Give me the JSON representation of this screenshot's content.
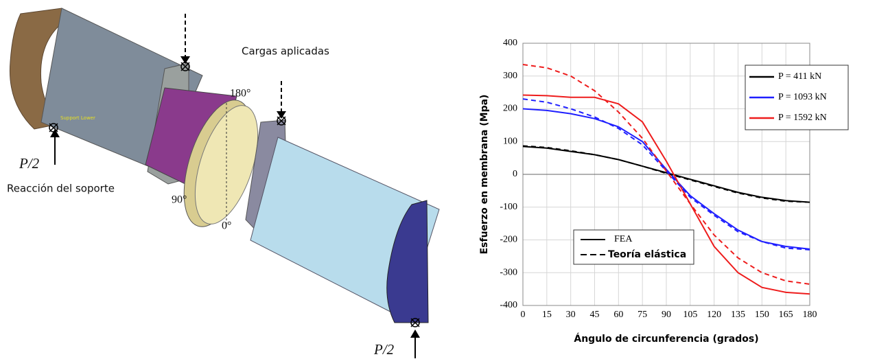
{
  "diagram": {
    "labels": [
      "Cargas aplicadas",
      "Reacción del soporte",
      "P/2",
      "P/2",
      "180°",
      "90°",
      "0°",
      "Support Lower"
    ]
  },
  "chart_data": {
    "type": "line",
    "y_label": "Esfuerzo en membrana (Mpa)",
    "x_label": "Ángulo de circunferencia (grados)",
    "x": [
      0,
      15,
      30,
      45,
      60,
      75,
      90,
      105,
      120,
      135,
      150,
      165,
      180
    ],
    "xlim": [
      0,
      180
    ],
    "xticks": [
      0,
      15,
      30,
      45,
      60,
      75,
      90,
      105,
      120,
      135,
      150,
      165,
      180
    ],
    "ylim": [
      -400,
      400
    ],
    "yticks": [
      -400,
      -300,
      -200,
      -100,
      0,
      100,
      200,
      300,
      400
    ],
    "grid": true,
    "line_styles": [
      "FEA",
      "Teoría elástica"
    ],
    "series": [
      {
        "name": "P = 411 kN",
        "color": "#000000",
        "values": [
          85,
          80,
          70,
          60,
          45,
          25,
          5,
          -15,
          -35,
          -55,
          -70,
          -80,
          -85
        ],
        "theory_values": [
          87,
          82,
          72,
          60,
          45,
          25,
          3,
          -17,
          -37,
          -57,
          -72,
          -82,
          -85
        ]
      },
      {
        "name": "P = 1093 kN",
        "color": "#1f1fff",
        "values": [
          200,
          195,
          185,
          170,
          145,
          100,
          15,
          -65,
          -120,
          -170,
          -205,
          -220,
          -228
        ],
        "theory_values": [
          230,
          220,
          200,
          175,
          140,
          90,
          10,
          -70,
          -125,
          -175,
          -205,
          -225,
          -230
        ]
      },
      {
        "name": "P = 1592 kN",
        "color": "#ee1c1c",
        "values": [
          242,
          240,
          235,
          235,
          215,
          160,
          40,
          -90,
          -220,
          -300,
          -345,
          -360,
          -365
        ],
        "theory_values": [
          335,
          325,
          300,
          255,
          190,
          110,
          10,
          -90,
          -185,
          -255,
          -300,
          -325,
          -335
        ]
      }
    ]
  }
}
